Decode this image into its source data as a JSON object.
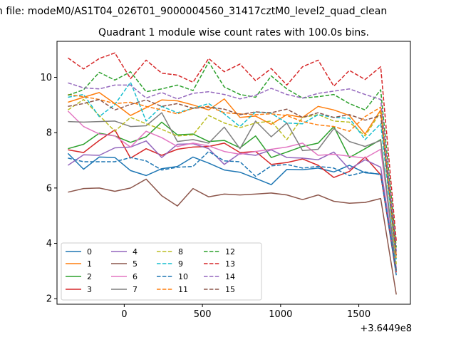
{
  "figure": {
    "suptitle": "n file: modeM0/AS1T04_026T01_9000004560_31417cztM0_level2_quad_clean",
    "offset_label": "+3.6449e8"
  },
  "chart_data": {
    "type": "line",
    "title": "Quadrant 1 module wise count rates with 100.0s bins.",
    "xlabel": "",
    "ylabel": "",
    "x_offset": 364490000,
    "xlim": [
      -430,
      1830
    ],
    "ylim": [
      1.8,
      11.3
    ],
    "xticks": [
      0,
      500,
      1000,
      1500
    ],
    "yticks": [
      2,
      4,
      6,
      8,
      10
    ],
    "grid": false,
    "legend": {
      "location": "lower-left",
      "columns": 4
    },
    "x": [
      -360,
      -260,
      -160,
      -60,
      40,
      140,
      240,
      340,
      440,
      540,
      640,
      740,
      840,
      940,
      1040,
      1140,
      1240,
      1340,
      1440,
      1540,
      1640,
      1740
    ],
    "series": [
      {
        "name": "0",
        "color": "#1f77b4",
        "dash": "solid",
        "values": [
          7.25,
          6.68,
          7.12,
          7.1,
          6.63,
          6.45,
          6.7,
          6.78,
          7.12,
          6.9,
          6.65,
          6.57,
          6.35,
          6.12,
          6.67,
          6.66,
          6.72,
          6.58,
          6.82,
          6.55,
          6.5,
          2.85
        ]
      },
      {
        "name": "1",
        "color": "#ff7f0e",
        "dash": "solid",
        "values": [
          9.1,
          9.28,
          9.45,
          9.05,
          8.62,
          8.9,
          9.18,
          9.15,
          9.0,
          8.82,
          9.22,
          8.55,
          8.6,
          8.3,
          8.65,
          8.55,
          8.95,
          8.82,
          8.62,
          7.95,
          8.82,
          3.55
        ]
      },
      {
        "name": "2",
        "color": "#2ca02c",
        "dash": "solid",
        "values": [
          7.42,
          7.58,
          7.98,
          7.88,
          7.65,
          7.85,
          8.38,
          7.92,
          7.95,
          7.68,
          7.72,
          7.45,
          7.88,
          7.1,
          7.3,
          7.5,
          7.62,
          8.22,
          7.1,
          7.42,
          7.75,
          3.05
        ]
      },
      {
        "name": "3",
        "color": "#d62728",
        "dash": "solid",
        "values": [
          7.38,
          7.28,
          7.72,
          8.1,
          7.08,
          7.42,
          7.18,
          7.4,
          7.48,
          7.5,
          7.62,
          7.28,
          7.32,
          6.85,
          6.92,
          7.05,
          6.82,
          6.38,
          6.6,
          7.12,
          6.48,
          2.95
        ]
      },
      {
        "name": "4",
        "color": "#9467bd",
        "dash": "solid",
        "values": [
          6.82,
          7.2,
          7.18,
          7.45,
          7.48,
          7.7,
          7.1,
          7.58,
          7.6,
          7.42,
          6.85,
          7.25,
          7.18,
          7.38,
          7.1,
          7.08,
          7.02,
          7.3,
          6.68,
          7.02,
          6.75,
          3.05
        ]
      },
      {
        "name": "5",
        "color": "#8c564b",
        "dash": "solid",
        "values": [
          5.85,
          5.98,
          6.0,
          5.88,
          6.0,
          6.32,
          5.72,
          5.35,
          5.98,
          5.68,
          5.78,
          5.75,
          5.78,
          5.82,
          5.75,
          5.58,
          5.75,
          5.52,
          5.45,
          5.48,
          5.62,
          2.15
        ]
      },
      {
        "name": "6",
        "color": "#e377c2",
        "dash": "solid",
        "values": [
          8.78,
          8.22,
          7.95,
          7.88,
          7.48,
          8.05,
          7.82,
          7.5,
          7.62,
          7.52,
          7.32,
          7.22,
          7.32,
          7.4,
          7.48,
          7.62,
          7.18,
          7.22,
          7.15,
          7.08,
          7.4,
          3.12
        ]
      },
      {
        "name": "7",
        "color": "#7f7f7f",
        "dash": "solid",
        "values": [
          8.4,
          8.38,
          8.4,
          8.42,
          8.22,
          8.25,
          8.72,
          7.68,
          7.75,
          7.62,
          8.2,
          7.42,
          8.42,
          7.85,
          8.35,
          7.35,
          7.4,
          8.15,
          7.68,
          7.5,
          7.72,
          3.0
        ]
      },
      {
        "name": "8",
        "color": "#bcbd22",
        "dash": "dashed",
        "values": [
          8.82,
          9.2,
          8.62,
          8.05,
          8.55,
          8.32,
          8.12,
          7.88,
          7.92,
          8.62,
          8.35,
          8.18,
          8.35,
          8.42,
          7.75,
          8.55,
          8.65,
          8.42,
          8.38,
          7.88,
          8.75,
          3.25
        ]
      },
      {
        "name": "9",
        "color": "#17becf",
        "dash": "dashed",
        "values": [
          9.28,
          9.38,
          8.58,
          9.02,
          9.82,
          8.42,
          8.95,
          8.72,
          8.88,
          9.05,
          8.68,
          8.22,
          8.75,
          8.7,
          8.35,
          8.32,
          8.65,
          8.55,
          8.52,
          7.75,
          8.32,
          3.42
        ]
      },
      {
        "name": "10",
        "color": "#1f77b4",
        "dash": "dashed",
        "values": [
          7.08,
          6.95,
          6.95,
          6.95,
          7.1,
          6.98,
          6.65,
          6.75,
          6.78,
          7.32,
          6.98,
          6.95,
          6.42,
          6.8,
          6.85,
          6.72,
          6.78,
          6.72,
          6.45,
          6.58,
          6.48,
          3.02
        ]
      },
      {
        "name": "11",
        "color": "#ff7f0e",
        "dash": "dashed",
        "values": [
          9.38,
          9.3,
          9.2,
          9.05,
          9.1,
          8.95,
          8.82,
          8.68,
          8.88,
          8.95,
          8.72,
          8.68,
          8.65,
          8.68,
          8.62,
          8.4,
          8.28,
          8.22,
          8.05,
          8.58,
          8.92,
          3.48
        ]
      },
      {
        "name": "12",
        "color": "#2ca02c",
        "dash": "dashed",
        "values": [
          9.35,
          9.55,
          10.18,
          9.9,
          10.2,
          9.48,
          9.58,
          9.72,
          9.52,
          10.55,
          9.65,
          9.38,
          9.28,
          10.05,
          9.58,
          9.25,
          9.3,
          9.38,
          9.05,
          8.82,
          9.55,
          3.85
        ]
      },
      {
        "name": "13",
        "color": "#d62728",
        "dash": "dashed",
        "values": [
          10.7,
          10.3,
          10.68,
          10.88,
          9.95,
          10.62,
          10.15,
          10.08,
          9.82,
          10.68,
          10.2,
          10.48,
          9.88,
          10.32,
          9.72,
          10.38,
          10.62,
          9.68,
          10.25,
          9.92,
          10.38,
          4.08
        ]
      },
      {
        "name": "14",
        "color": "#9467bd",
        "dash": "dashed",
        "values": [
          9.8,
          9.62,
          9.58,
          9.72,
          9.72,
          9.25,
          9.45,
          9.22,
          9.42,
          9.48,
          9.38,
          9.22,
          9.35,
          9.6,
          9.38,
          9.25,
          9.42,
          9.5,
          9.58,
          9.38,
          9.2,
          3.72
        ]
      },
      {
        "name": "15",
        "color": "#8c564b",
        "dash": "dashed",
        "values": [
          8.95,
          9.05,
          9.2,
          8.82,
          9.02,
          9.18,
          8.95,
          9.05,
          8.88,
          8.92,
          8.85,
          8.65,
          8.75,
          8.72,
          8.85,
          8.55,
          8.72,
          8.55,
          8.65,
          8.45,
          8.62,
          3.58
        ]
      }
    ]
  }
}
